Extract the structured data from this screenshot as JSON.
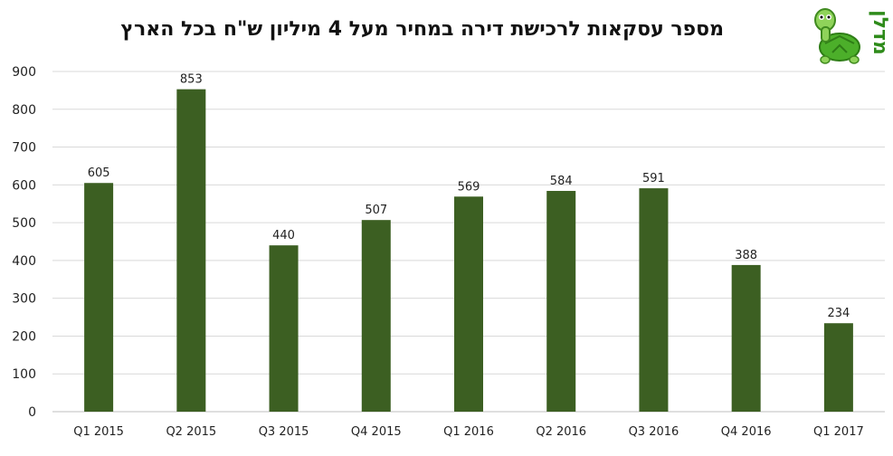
{
  "chart_data": {
    "type": "bar",
    "title": "מספר עסקאות לרכישת דירה במחיר מעל 4 מיליון ש\"ח בכל הארץ",
    "categories": [
      "Q1 2015",
      "Q2 2015",
      "Q3 2015",
      "Q4 2015",
      "Q1 2016",
      "Q2 2016",
      "Q3 2016",
      "Q4 2016",
      "Q1 2017"
    ],
    "values": [
      605,
      853,
      440,
      507,
      569,
      584,
      591,
      388,
      234
    ],
    "ylim": [
      0,
      900
    ],
    "yticks": [
      0,
      100,
      200,
      300,
      400,
      500,
      600,
      700,
      800,
      900
    ],
    "grid": true,
    "data_labels": true,
    "bar_color": "#3c5f22"
  },
  "logo": {
    "text": "מדלן",
    "icon": "turtle-icon",
    "colors": {
      "text": "#2e8b1a",
      "shell": "#4caf2a",
      "skin": "#8fd35a"
    }
  }
}
